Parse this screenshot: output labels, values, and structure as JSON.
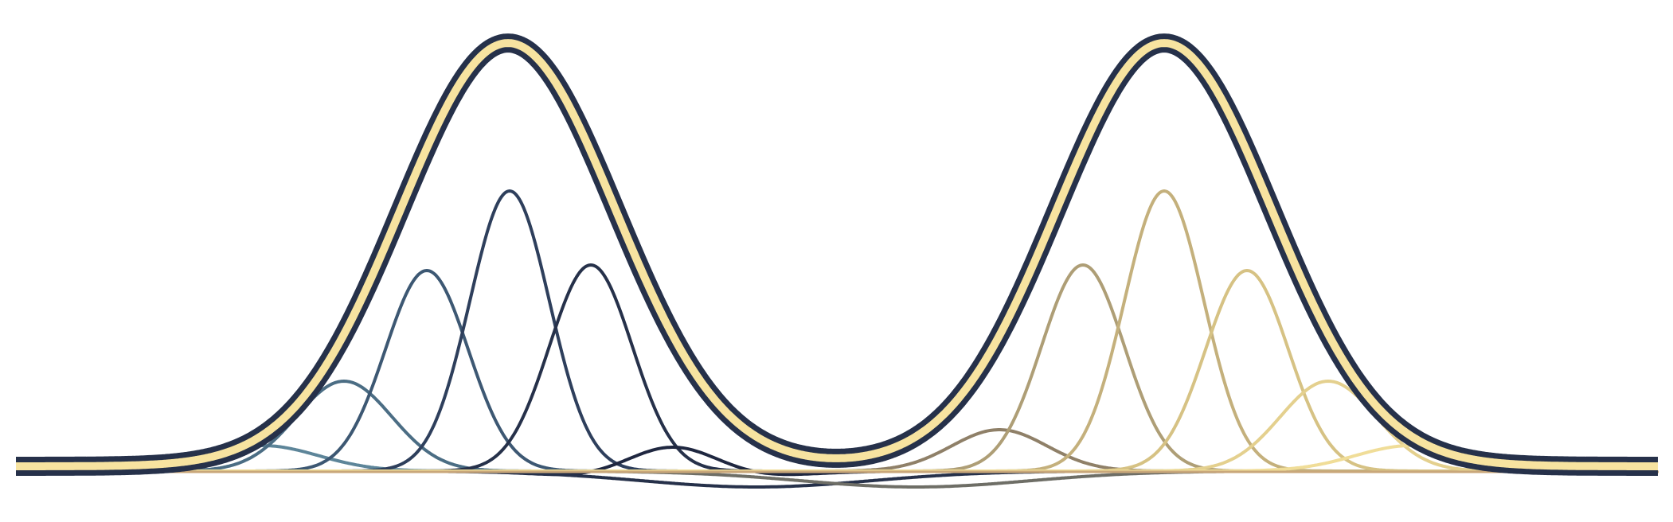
{
  "colors": {
    "background": "#ffffff",
    "envelope_outline": "#26314a",
    "envelope_fill": "#f7e3a0",
    "baseline": "#c9a77a"
  },
  "left_group_colors": [
    "#5d8599",
    "#4b6d84",
    "#3d5873",
    "#2e3f5c",
    "#26314a",
    "#1f2740",
    "#26314a"
  ],
  "right_group_colors": [
    "#6e6e66",
    "#8f8068",
    "#ae9e76",
    "#c4b07c",
    "#d6c284",
    "#e4d08e",
    "#f0dd98"
  ]
}
